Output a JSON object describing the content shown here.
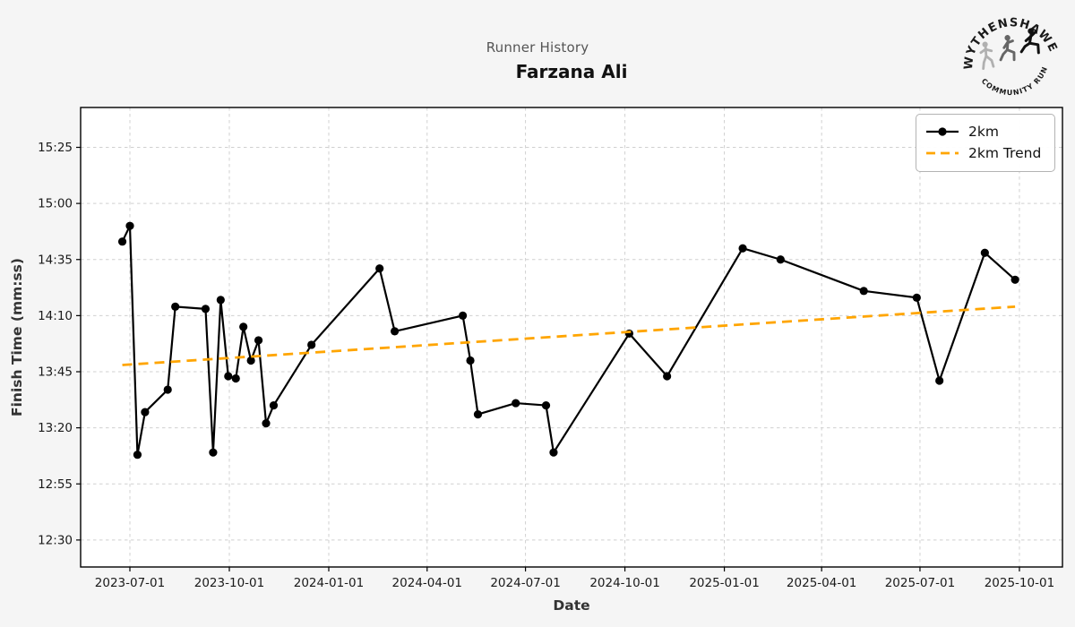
{
  "header": {
    "suptitle": "Runner History",
    "title": "Farzana Ali"
  },
  "logo": {
    "top_text": "WYTHENSHAWE",
    "bottom_text": "COMMUNITY RUN"
  },
  "legend": {
    "series_label": "2km",
    "trend_label": "2km Trend"
  },
  "colors": {
    "series": "#000000",
    "trend": "#FFA500",
    "grid": "#d0d0d0",
    "figure_bg": "#f5f5f5",
    "plot_bg": "#ffffff",
    "spine": "#000000",
    "suptitle": "#555555",
    "tick_label": "#1a1a1a"
  },
  "chart_data": {
    "type": "line",
    "title": "Farzana Ali",
    "subtitle": "Runner History",
    "xlabel": "Date",
    "ylabel": "Finish Time (mm:ss)",
    "grid": true,
    "legend_position": "upper right",
    "x_ticks": [
      "2023-07-01",
      "2023-10-01",
      "2024-01-01",
      "2024-04-01",
      "2024-07-01",
      "2024-10-01",
      "2025-01-01",
      "2025-04-01",
      "2025-07-01",
      "2025-10-01"
    ],
    "y_ticks": [
      "12:30",
      "12:55",
      "13:20",
      "13:45",
      "14:10",
      "14:35",
      "15:00",
      "15:25"
    ],
    "y_axis_format": "mm:ss",
    "series": [
      {
        "name": "2km",
        "marker": "circle",
        "points": [
          {
            "date": "2023-06-24",
            "time": "14:43"
          },
          {
            "date": "2023-07-01",
            "time": "14:50"
          },
          {
            "date": "2023-07-08",
            "time": "13:08"
          },
          {
            "date": "2023-07-15",
            "time": "13:27"
          },
          {
            "date": "2023-08-05",
            "time": "13:37"
          },
          {
            "date": "2023-08-12",
            "time": "14:14"
          },
          {
            "date": "2023-09-09",
            "time": "14:13"
          },
          {
            "date": "2023-09-16",
            "time": "13:09"
          },
          {
            "date": "2023-09-23",
            "time": "14:17"
          },
          {
            "date": "2023-09-30",
            "time": "13:43"
          },
          {
            "date": "2023-10-07",
            "time": "13:42"
          },
          {
            "date": "2023-10-14",
            "time": "14:05"
          },
          {
            "date": "2023-10-21",
            "time": "13:50"
          },
          {
            "date": "2023-10-28",
            "time": "13:59"
          },
          {
            "date": "2023-11-04",
            "time": "13:22"
          },
          {
            "date": "2023-11-11",
            "time": "13:30"
          },
          {
            "date": "2023-12-16",
            "time": "13:57"
          },
          {
            "date": "2024-02-17",
            "time": "14:31"
          },
          {
            "date": "2024-03-02",
            "time": "14:03"
          },
          {
            "date": "2024-05-04",
            "time": "14:10"
          },
          {
            "date": "2024-05-11",
            "time": "13:50"
          },
          {
            "date": "2024-05-18",
            "time": "13:26"
          },
          {
            "date": "2024-06-22",
            "time": "13:31"
          },
          {
            "date": "2024-07-20",
            "time": "13:30"
          },
          {
            "date": "2024-07-27",
            "time": "13:09"
          },
          {
            "date": "2024-10-05",
            "time": "14:02"
          },
          {
            "date": "2024-11-09",
            "time": "13:43"
          },
          {
            "date": "2025-01-18",
            "time": "14:40"
          },
          {
            "date": "2025-02-22",
            "time": "14:35"
          },
          {
            "date": "2025-05-10",
            "time": "14:21"
          },
          {
            "date": "2025-06-28",
            "time": "14:18"
          },
          {
            "date": "2025-07-19",
            "time": "13:41"
          },
          {
            "date": "2025-08-30",
            "time": "14:38"
          },
          {
            "date": "2025-09-27",
            "time": "14:26"
          }
        ]
      }
    ],
    "trend": {
      "name": "2km Trend",
      "style": "dashed",
      "start": {
        "date": "2023-06-24",
        "time": "13:48"
      },
      "end": {
        "date": "2025-09-27",
        "time": "14:14"
      }
    }
  }
}
